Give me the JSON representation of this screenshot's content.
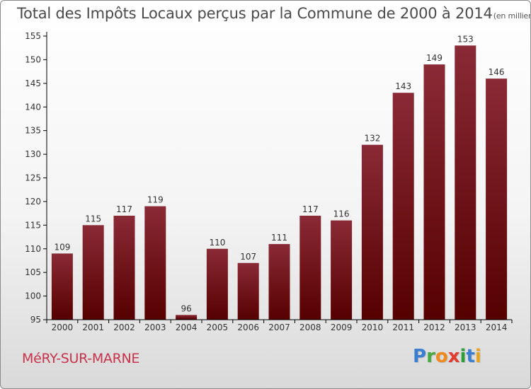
{
  "chart_data": {
    "type": "bar",
    "title": "Total des Impôts Locaux perçus par la Commune de 2000 à 2014",
    "unit_label": "(en milliers d'€)",
    "categories": [
      "2000",
      "2001",
      "2002",
      "2003",
      "2004",
      "2005",
      "2006",
      "2007",
      "2008",
      "2009",
      "2010",
      "2011",
      "2012",
      "2013",
      "2014"
    ],
    "values": [
      109,
      115,
      117,
      119,
      96,
      110,
      107,
      111,
      117,
      116,
      132,
      143,
      149,
      153,
      146
    ],
    "ylim": [
      95,
      155
    ],
    "yticks": [
      95,
      100,
      105,
      110,
      115,
      120,
      125,
      130,
      135,
      140,
      145,
      150,
      155
    ],
    "xlabel": "",
    "ylabel": "",
    "grid": false,
    "colors": {
      "bar_top": "#8a2a36",
      "bar_bottom": "#560000",
      "axis": "#000000",
      "text": "#333333"
    }
  },
  "footer": {
    "commune": "MéRY-SUR-MARNE",
    "brand_letters": [
      {
        "ch": "P",
        "color": "#3a7fd0"
      },
      {
        "ch": "r",
        "color": "#49a83f"
      },
      {
        "ch": "o",
        "color": "#f08a1c"
      },
      {
        "ch": "x",
        "color": "#e23a2c"
      },
      {
        "ch": "i",
        "color": "#2f9e3a"
      },
      {
        "ch": "t",
        "color": "#3a7fd0"
      },
      {
        "ch": "i",
        "color": "#e9a21b"
      }
    ]
  }
}
